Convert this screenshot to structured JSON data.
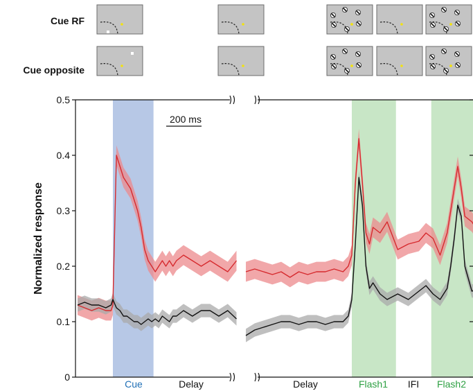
{
  "colors": {
    "cue_rf": "#d62a2e",
    "cue_rf_band": "#ec8a8c",
    "cue_opposite": "#111111",
    "cue_opposite_band": "#a9a9a9",
    "cue_shade": "#b7c8e6",
    "flash_shade": "#c8e6c6",
    "cue_text": "#1f6fb6",
    "flash_text": "#2ea043",
    "stim_bg": "#c4c4c4",
    "fixation": "#f2e20f"
  },
  "panels": {
    "row_labels": [
      "Cue RF",
      "Cue opposite"
    ]
  },
  "chart_data": {
    "type": "line",
    "ylabel": "Normalized response",
    "ylim": [
      0,
      0.5
    ],
    "yticks": [
      "0",
      "0.1",
      "0.2",
      "0.3",
      "0.4",
      "0.5"
    ],
    "scale_bar": "200 ms",
    "epoch_labels": {
      "left": [
        "Cue",
        "Delay"
      ],
      "right": [
        "Delay",
        "Flash1",
        "IFI",
        "Flash2"
      ]
    },
    "left": {
      "time_ms": [
        -200,
        -160,
        -120,
        -80,
        -40,
        -10,
        0,
        20,
        40,
        60,
        80,
        100,
        120,
        140,
        160,
        180,
        200,
        220,
        240,
        260,
        280,
        300,
        320,
        340,
        360,
        400,
        450,
        500,
        550,
        600,
        650,
        700
      ],
      "series": [
        {
          "name": "Cue RF",
          "values": [
            0.13,
            0.125,
            0.12,
            0.125,
            0.12,
            0.12,
            0.13,
            0.4,
            0.38,
            0.36,
            0.35,
            0.34,
            0.32,
            0.3,
            0.27,
            0.23,
            0.21,
            0.2,
            0.19,
            0.2,
            0.21,
            0.2,
            0.21,
            0.2,
            0.21,
            0.22,
            0.21,
            0.2,
            0.21,
            0.2,
            0.19,
            0.21
          ]
        },
        {
          "name": "Cue opposite",
          "values": [
            0.13,
            0.135,
            0.13,
            0.13,
            0.125,
            0.13,
            0.14,
            0.125,
            0.12,
            0.11,
            0.11,
            0.105,
            0.1,
            0.1,
            0.095,
            0.1,
            0.105,
            0.1,
            0.105,
            0.1,
            0.11,
            0.105,
            0.1,
            0.11,
            0.11,
            0.12,
            0.11,
            0.12,
            0.12,
            0.11,
            0.12,
            0.105
          ]
        }
      ]
    },
    "right": {
      "time_ms": [
        -600,
        -550,
        -500,
        -450,
        -400,
        -350,
        -300,
        -250,
        -200,
        -150,
        -100,
        -50,
        -20,
        0,
        20,
        40,
        60,
        80,
        100,
        120,
        160,
        200,
        260,
        320,
        380,
        420,
        460,
        500,
        540,
        560,
        580,
        600,
        620,
        640,
        680,
        720,
        760,
        800
      ],
      "series": [
        {
          "name": "Cue RF",
          "values": [
            0.19,
            0.195,
            0.19,
            0.185,
            0.19,
            0.18,
            0.19,
            0.185,
            0.19,
            0.19,
            0.195,
            0.19,
            0.2,
            0.22,
            0.35,
            0.43,
            0.35,
            0.26,
            0.24,
            0.27,
            0.26,
            0.28,
            0.23,
            0.24,
            0.245,
            0.26,
            0.25,
            0.22,
            0.26,
            0.3,
            0.34,
            0.38,
            0.34,
            0.29,
            0.28,
            0.26,
            0.24,
            0.21
          ]
        },
        {
          "name": "Cue opposite",
          "values": [
            0.075,
            0.085,
            0.09,
            0.095,
            0.1,
            0.1,
            0.095,
            0.1,
            0.1,
            0.095,
            0.1,
            0.1,
            0.11,
            0.14,
            0.24,
            0.36,
            0.31,
            0.2,
            0.16,
            0.17,
            0.15,
            0.14,
            0.15,
            0.14,
            0.155,
            0.165,
            0.15,
            0.14,
            0.16,
            0.2,
            0.25,
            0.31,
            0.29,
            0.2,
            0.155,
            0.16,
            0.14,
            0.145
          ]
        }
      ]
    }
  }
}
